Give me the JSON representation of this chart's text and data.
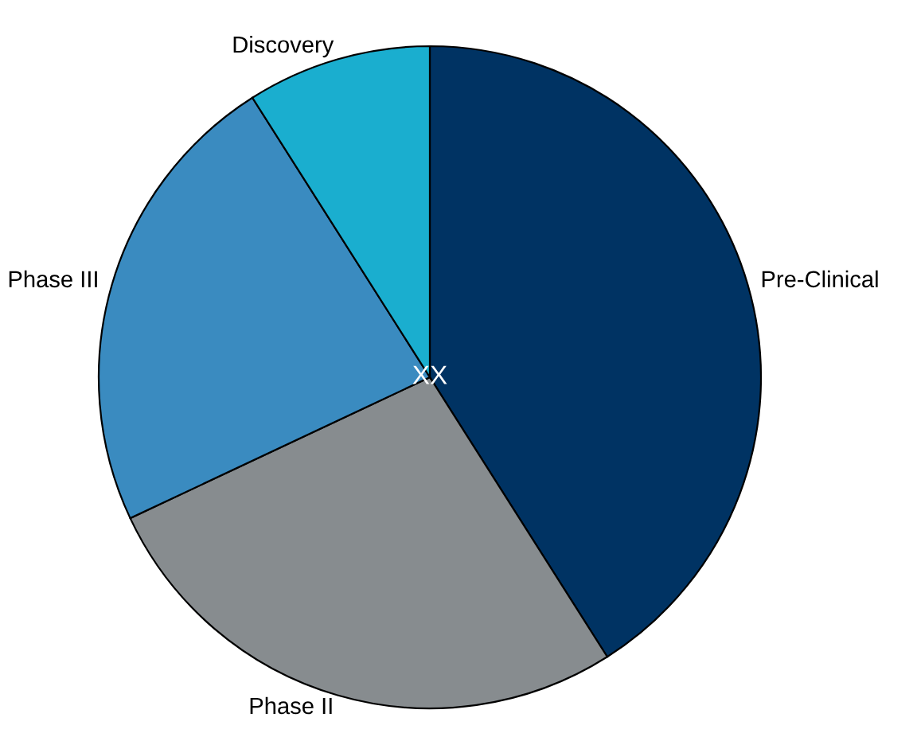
{
  "chart_data": {
    "type": "pie",
    "categories": [
      "Pre-Clinical",
      "Phase II",
      "Phase III",
      "Discovery"
    ],
    "values": [
      41,
      27,
      23,
      9
    ],
    "colors": [
      "#003363",
      "#878c8f",
      "#3a8bc0",
      "#1aaecf"
    ],
    "annotations": [
      "XX"
    ]
  }
}
